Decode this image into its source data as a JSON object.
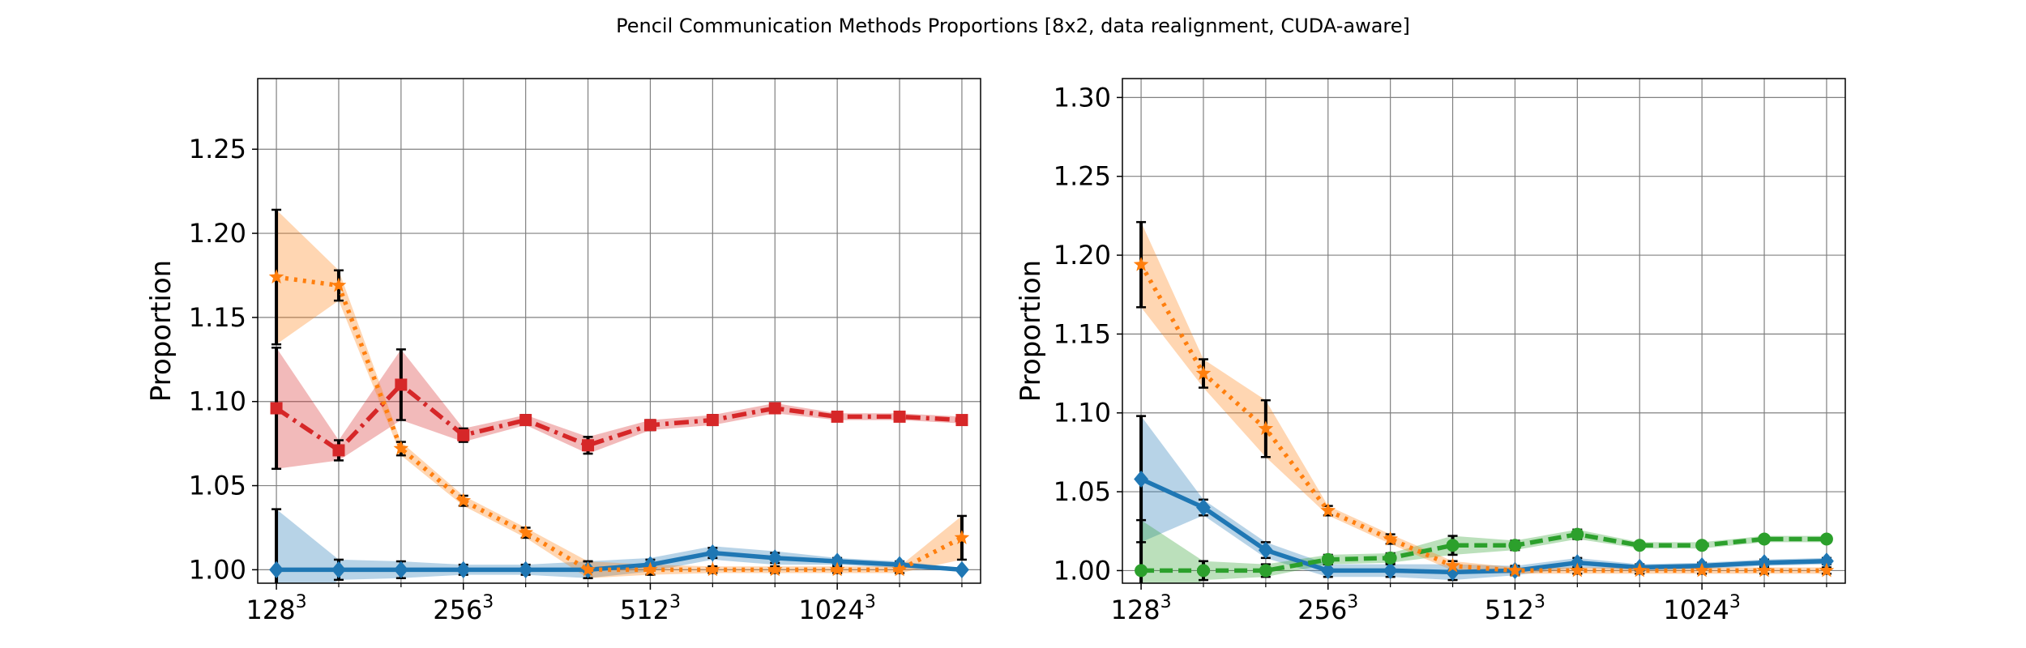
{
  "title": "Pencil Communication Methods Proportions [8x2, data realignment, CUDA-aware]",
  "colors": {
    "blue": "#1f77b4",
    "orange": "#ff7f0e",
    "green": "#2ca02c",
    "red": "#d62728",
    "grid": "#808080"
  },
  "chart_data": [
    {
      "type": "line",
      "ylabel": "Proportion",
      "grid": true,
      "ylim": [
        0.992,
        1.292
      ],
      "yticks": [
        "1.00",
        "1.05",
        "1.10",
        "1.15",
        "1.20",
        "1.25"
      ],
      "x_index": [
        0,
        1,
        2,
        3,
        4,
        5,
        6,
        7,
        8,
        9,
        10,
        11
      ],
      "xticks": [
        {
          "base": "128",
          "exp": "3"
        },
        {
          "base": "256",
          "exp": "3"
        },
        {
          "base": "512",
          "exp": "3"
        },
        {
          "base": "1024",
          "exp": "3"
        }
      ],
      "series": [
        {
          "color": "blue",
          "style": "solid",
          "marker": "diamond",
          "values": [
            1.0,
            1.0,
            1.0,
            1.0,
            1.0,
            1.0,
            1.003,
            1.01,
            1.007,
            1.005,
            1.003,
            1.0
          ],
          "err": [
            0.036,
            0.006,
            0.005,
            0.003,
            0.003,
            0.005,
            0.003,
            0.003,
            0.003,
            0.002,
            0.002,
            0.001
          ],
          "band": [
            0.036,
            0.006,
            0.005,
            0.003,
            0.003,
            0.005,
            0.004,
            0.004,
            0.004,
            0.002,
            0.002,
            0.001
          ]
        },
        {
          "color": "red",
          "style": "dashdot",
          "marker": "square",
          "values": [
            1.096,
            1.071,
            1.11,
            1.08,
            1.089,
            1.074,
            1.086,
            1.089,
            1.096,
            1.091,
            1.091,
            1.089
          ],
          "err": [
            0.036,
            0.006,
            0.021,
            0.004,
            0.003,
            0.005,
            0.003,
            0.003,
            0.003,
            0.002,
            0.002,
            0.002
          ],
          "band": [
            0.036,
            0.006,
            0.021,
            0.004,
            0.003,
            0.005,
            0.003,
            0.003,
            0.003,
            0.002,
            0.002,
            0.002
          ]
        },
        {
          "color": "orange",
          "style": "dotted",
          "marker": "star",
          "values": [
            1.174,
            1.169,
            1.072,
            1.041,
            1.022,
            1.0,
            1.0,
            1.0,
            1.0,
            1.0,
            1.0,
            1.019
          ],
          "err": [
            0.04,
            0.009,
            0.004,
            0.003,
            0.003,
            0.005,
            0.003,
            0.002,
            0.002,
            0.002,
            0.002,
            0.013
          ],
          "band": [
            0.04,
            0.009,
            0.004,
            0.003,
            0.003,
            0.005,
            0.003,
            0.002,
            0.002,
            0.002,
            0.002,
            0.013
          ]
        }
      ]
    },
    {
      "type": "line",
      "ylabel": "Proportion",
      "grid": true,
      "ylim": [
        0.992,
        1.312
      ],
      "yticks": [
        "1.00",
        "1.05",
        "1.10",
        "1.15",
        "1.20",
        "1.25",
        "1.30"
      ],
      "x_index": [
        0,
        1,
        2,
        3,
        4,
        5,
        6,
        7,
        8,
        9,
        10,
        11
      ],
      "xticks": [
        {
          "base": "128",
          "exp": "3"
        },
        {
          "base": "256",
          "exp": "3"
        },
        {
          "base": "512",
          "exp": "3"
        },
        {
          "base": "1024",
          "exp": "3"
        }
      ],
      "series": [
        {
          "color": "blue",
          "style": "solid",
          "marker": "diamond",
          "values": [
            1.058,
            1.04,
            1.013,
            1.0,
            1.0,
            0.999,
            1.0,
            1.005,
            1.002,
            1.003,
            1.005,
            1.006
          ],
          "err": [
            0.04,
            0.005,
            0.005,
            0.004,
            0.004,
            0.005,
            0.003,
            0.003,
            0.002,
            0.002,
            0.002,
            0.002
          ],
          "band": [
            0.04,
            0.005,
            0.005,
            0.004,
            0.004,
            0.005,
            0.003,
            0.003,
            0.002,
            0.002,
            0.002,
            0.002
          ]
        },
        {
          "color": "green",
          "style": "dashed",
          "marker": "circle",
          "values": [
            1.0,
            1.0,
            1.0,
            1.007,
            1.008,
            1.016,
            1.016,
            1.023,
            1.016,
            1.016,
            1.02,
            1.02
          ],
          "err": [
            0.032,
            0.006,
            0.004,
            0.003,
            0.003,
            0.006,
            0.003,
            0.003,
            0.002,
            0.002,
            0.002,
            0.002
          ],
          "band": [
            0.032,
            0.006,
            0.004,
            0.003,
            0.003,
            0.006,
            0.003,
            0.003,
            0.002,
            0.002,
            0.002,
            0.002
          ]
        },
        {
          "color": "orange",
          "style": "dotted",
          "marker": "star",
          "values": [
            1.194,
            1.125,
            1.09,
            1.038,
            1.02,
            1.003,
            1.0,
            1.0,
            1.0,
            1.0,
            1.0,
            1.0
          ],
          "err": [
            0.027,
            0.009,
            0.018,
            0.003,
            0.003,
            0.003,
            0.002,
            0.002,
            0.002,
            0.002,
            0.002,
            0.002
          ],
          "band": [
            0.027,
            0.009,
            0.018,
            0.003,
            0.003,
            0.003,
            0.002,
            0.002,
            0.002,
            0.002,
            0.002,
            0.002
          ]
        }
      ]
    }
  ]
}
